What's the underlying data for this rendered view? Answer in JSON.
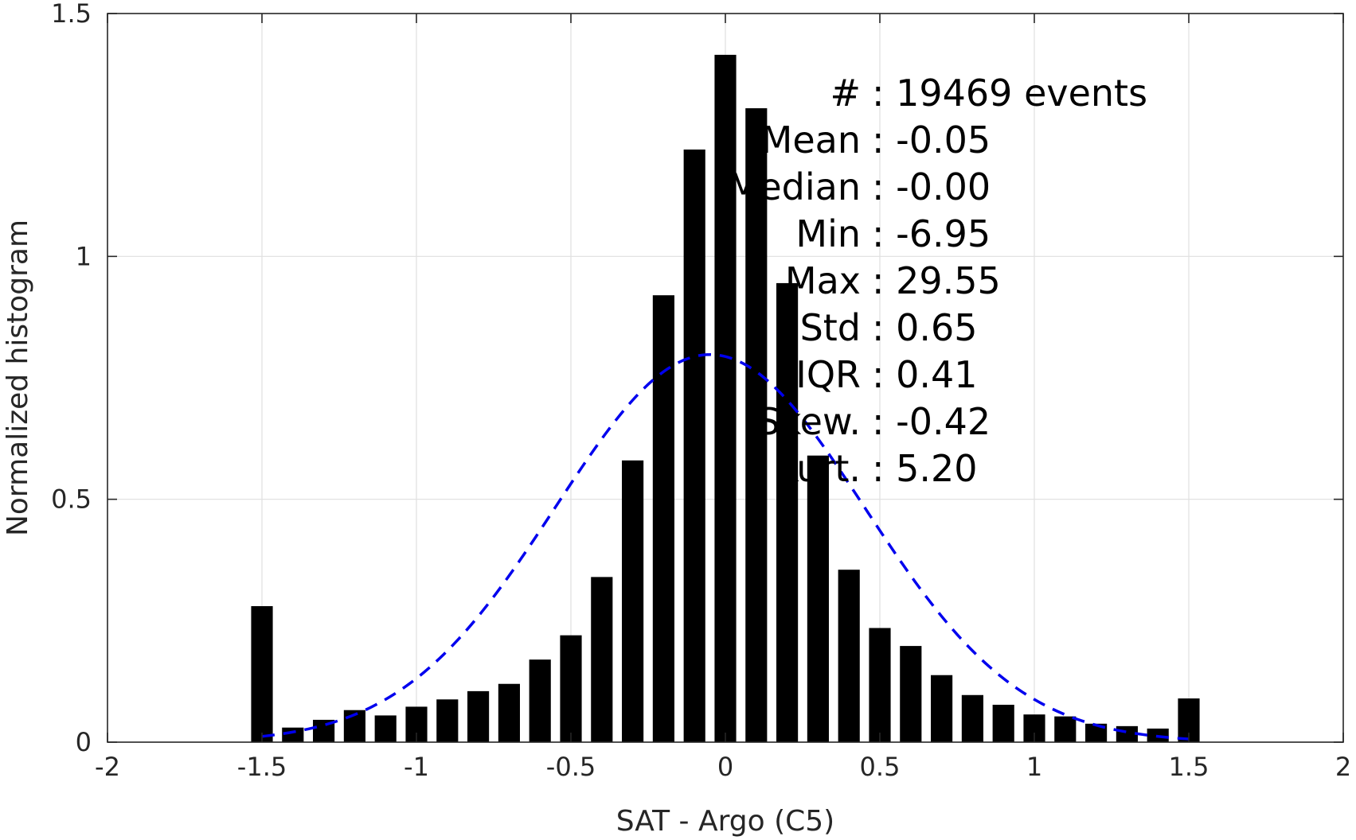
{
  "chart_data": {
    "type": "bar",
    "xlabel": "SAT - Argo (C5)",
    "ylabel": "Normalized histogram",
    "xlim": [
      -2,
      2
    ],
    "ylim": [
      0,
      1.5
    ],
    "xticks": [
      -2,
      -1.5,
      -1,
      -0.5,
      0,
      0.5,
      1,
      1.5,
      2
    ],
    "xtick_labels": [
      "-2",
      "-1.5",
      "-1",
      "-0.5",
      "0",
      "0.5",
      "1",
      "1.5",
      "2"
    ],
    "yticks": [
      0,
      0.5,
      1,
      1.5
    ],
    "ytick_labels": [
      "0",
      "0.5",
      "1",
      "1.5"
    ],
    "grid": true,
    "bar_color": "#000000",
    "bar_width": 0.07,
    "x": [
      -1.5,
      -1.4,
      -1.3,
      -1.2,
      -1.1,
      -1.0,
      -0.9,
      -0.8,
      -0.7,
      -0.6,
      -0.5,
      -0.4,
      -0.3,
      -0.2,
      -0.1,
      0.0,
      0.1,
      0.2,
      0.3,
      0.4,
      0.5,
      0.6,
      0.7,
      0.8,
      0.9,
      1.0,
      1.1,
      1.2,
      1.3,
      1.4,
      1.5
    ],
    "values": [
      0.28,
      0.03,
      0.046,
      0.066,
      0.055,
      0.073,
      0.088,
      0.105,
      0.12,
      0.17,
      0.22,
      0.34,
      0.58,
      0.92,
      1.22,
      1.415,
      1.305,
      0.945,
      0.59,
      0.355,
      0.235,
      0.198,
      0.138,
      0.097,
      0.077,
      0.057,
      0.053,
      0.038,
      0.033,
      0.028,
      0.09
    ],
    "fit": {
      "type": "normal",
      "mean": -0.05,
      "std": 0.5,
      "x_range": [
        -1.5,
        1.5
      ],
      "color": "#0000ee",
      "style": "dashed"
    },
    "annotations": [
      "#  : 19469 events",
      "Mean : -0.05",
      "Median : -0.00",
      "Min : -6.95",
      "Max : 29.55",
      "Std : 0.65",
      "IQR : 0.41",
      "Skew. : -0.42",
      "Kurt. : 5.20"
    ]
  }
}
